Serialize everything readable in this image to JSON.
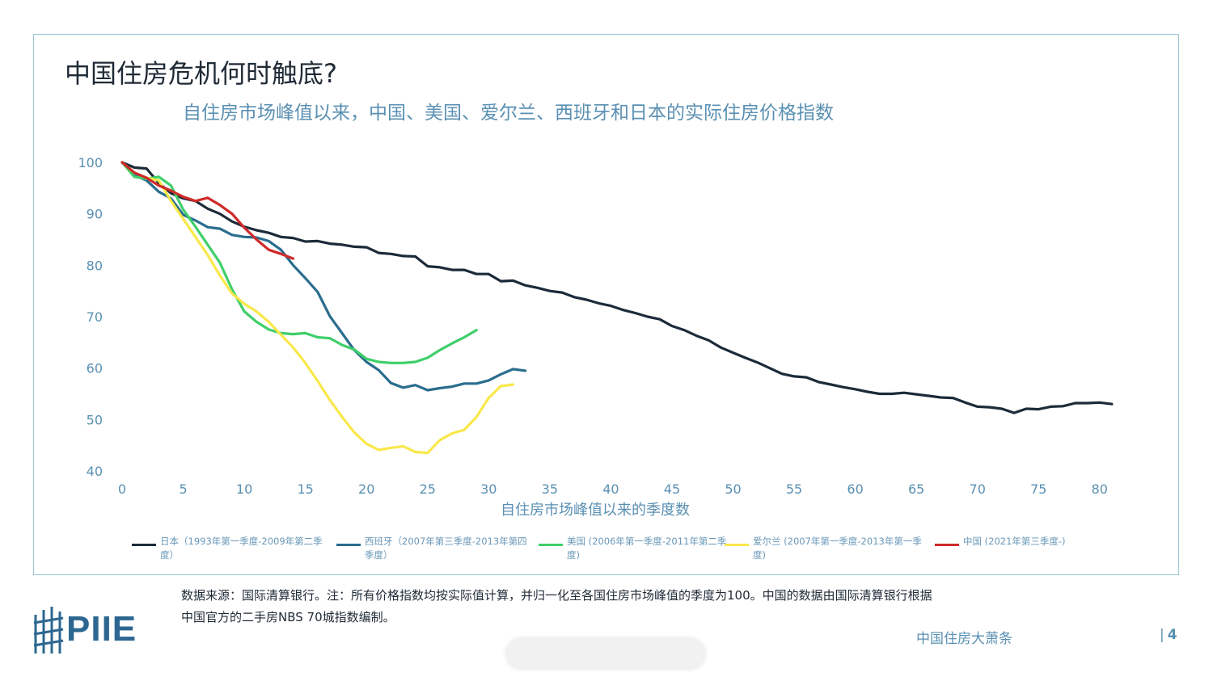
{
  "page": {
    "title": "中国住房危机何时触底?",
    "subtitle": "自住房市场峰值以来，中国、美国、爱尔兰、西班牙和日本的实际住房价格指数",
    "source_line1": "数据来源：国际清算银行。注：所有价格指数均按实际值计算，并归一化至各国住房市场峰值的季度为100。中国的数据由国际清算银行根据",
    "source_line2": "中国官方的二手房NBS 70城指数编制。",
    "logo_text": "PIIE",
    "footer_title": "中国住房大萧条",
    "page_number": "4",
    "page_separator": "|"
  },
  "colors": {
    "frame": "#9cc3d4",
    "title": "#1f2a36",
    "subtitle": "#5a90b3",
    "axis_text": "#5a90b3",
    "logo": "#2d6791"
  },
  "chart_data": {
    "type": "line",
    "title": "自住房市场峰值以来，中国、美国、爱尔兰、西班牙和日本的实际住房价格指数",
    "xlabel": "自住房市场峰值以来的季度数",
    "ylabel": "",
    "xlim": [
      0,
      85
    ],
    "ylim": [
      40,
      100
    ],
    "xticks": [
      0,
      5,
      10,
      15,
      20,
      25,
      30,
      35,
      40,
      45,
      50,
      55,
      60,
      65,
      70,
      75,
      80
    ],
    "yticks": [
      40,
      50,
      60,
      70,
      80,
      90,
      100
    ],
    "grid": false,
    "legend_position": "bottom",
    "series": [
      {
        "name": "日本（1993年第一季度-2009年第二季度）",
        "color": "#1c2b3a",
        "x": [
          0,
          1,
          2,
          3,
          4,
          5,
          6,
          7,
          8,
          9,
          10,
          11,
          12,
          13,
          14,
          15,
          16,
          17,
          18,
          19,
          20,
          21,
          22,
          23,
          24,
          25,
          26,
          27,
          28,
          29,
          30,
          31,
          32,
          33,
          34,
          35,
          36,
          37,
          38,
          39,
          40,
          41,
          42,
          43,
          44,
          45,
          46,
          47,
          48,
          49,
          50,
          51,
          52,
          53,
          54,
          55,
          56,
          57,
          58,
          59,
          60,
          61,
          62,
          63,
          64,
          65,
          66,
          67,
          68,
          69,
          70,
          71,
          72,
          73,
          74,
          75,
          76,
          77,
          78,
          79,
          80,
          81
        ],
        "y": [
          100,
          99,
          98.8,
          96,
          94,
          93,
          92.5,
          91,
          90,
          88.5,
          87.5,
          86.8,
          86.3,
          85.5,
          85.3,
          84.6,
          84.7,
          84.2,
          84,
          83.6,
          83.5,
          82.4,
          82.2,
          81.8,
          81.7,
          79.8,
          79.6,
          79.1,
          79.1,
          78.3,
          78.3,
          76.9,
          77,
          76.1,
          75.6,
          75,
          74.7,
          73.8,
          73.3,
          72.6,
          72.1,
          71.3,
          70.7,
          70,
          69.5,
          68.2,
          67.4,
          66.3,
          65.4,
          64,
          63,
          62,
          61.1,
          60,
          58.9,
          58.4,
          58.2,
          57.3,
          56.8,
          56.3,
          55.9,
          55.4,
          55,
          55,
          55.2,
          54.9,
          54.6,
          54.3,
          54.2,
          53.3,
          52.5,
          52.4,
          52.1,
          51.3,
          52.1,
          52,
          52.5,
          52.6,
          53.2,
          53.2,
          53.3,
          53
        ]
      },
      {
        "name": "西班牙（2007年第三季度-2013年第四季度）",
        "color": "#2a6d8e",
        "x": [
          0,
          1,
          2,
          3,
          4,
          5,
          6,
          7,
          8,
          9,
          10,
          11,
          12,
          13,
          14,
          15,
          16,
          17,
          18,
          19,
          20,
          21,
          22,
          23,
          24,
          25,
          26,
          27,
          28,
          29,
          30,
          31,
          32,
          33
        ],
        "y": [
          100,
          97.5,
          96.5,
          94.3,
          93,
          89.8,
          88.7,
          87.4,
          87.1,
          85.9,
          85.5,
          85.4,
          84.7,
          83,
          80,
          77.5,
          74.8,
          70.1,
          66.8,
          63.5,
          61.2,
          59.6,
          57.1,
          56.2,
          56.7,
          55.7,
          56.1,
          56.4,
          57,
          57,
          57.6,
          58.8,
          59.8,
          59.5
        ]
      },
      {
        "name": "美国 (2006年第一季度-2011年第二季度)",
        "color": "#3fcf6a",
        "x": [
          0,
          1,
          2,
          3,
          4,
          5,
          6,
          7,
          8,
          9,
          10,
          11,
          12,
          13,
          14,
          15,
          16,
          17,
          18,
          19,
          20,
          21,
          22,
          23,
          24,
          25,
          26,
          27,
          28,
          29
        ],
        "y": [
          100,
          97.2,
          96.8,
          97.2,
          95.5,
          90.8,
          87.5,
          84,
          80.5,
          75.3,
          71,
          69,
          67.5,
          66.8,
          66.6,
          66.8,
          66,
          65.8,
          64.5,
          63.6,
          61.8,
          61.2,
          61,
          61,
          61.2,
          62,
          63.5,
          64.8,
          66,
          67.4
        ]
      },
      {
        "name": "爱尔兰 (2007年第一季度-2013年第一季度)",
        "color": "#f9e84a",
        "x": [
          0,
          1,
          2,
          3,
          4,
          5,
          6,
          7,
          8,
          9,
          10,
          11,
          12,
          13,
          14,
          15,
          16,
          17,
          18,
          19,
          20,
          21,
          22,
          23,
          24,
          25,
          26,
          27,
          28,
          29,
          30,
          31,
          32
        ],
        "y": [
          100,
          98,
          97,
          96.5,
          92.5,
          89,
          85.5,
          82,
          78,
          74.5,
          72.5,
          71,
          69,
          66.5,
          64,
          61,
          57.5,
          53.8,
          50.5,
          47.5,
          45.3,
          44.1,
          44.5,
          44.8,
          43.7,
          43.5,
          46,
          47.3,
          48,
          50.5,
          54.2,
          56.5,
          56.8
        ]
      },
      {
        "name": "中国 (2021年第三季度-)",
        "color": "#cf2a2a",
        "x": [
          0,
          1,
          2,
          3,
          4,
          5,
          6,
          7,
          8,
          9,
          10,
          11,
          12,
          13,
          14
        ],
        "y": [
          100,
          98,
          97,
          95.5,
          94.5,
          93.3,
          92.5,
          93.1,
          91.7,
          90,
          87.3,
          85,
          83,
          82.2,
          81.3
        ]
      }
    ]
  }
}
